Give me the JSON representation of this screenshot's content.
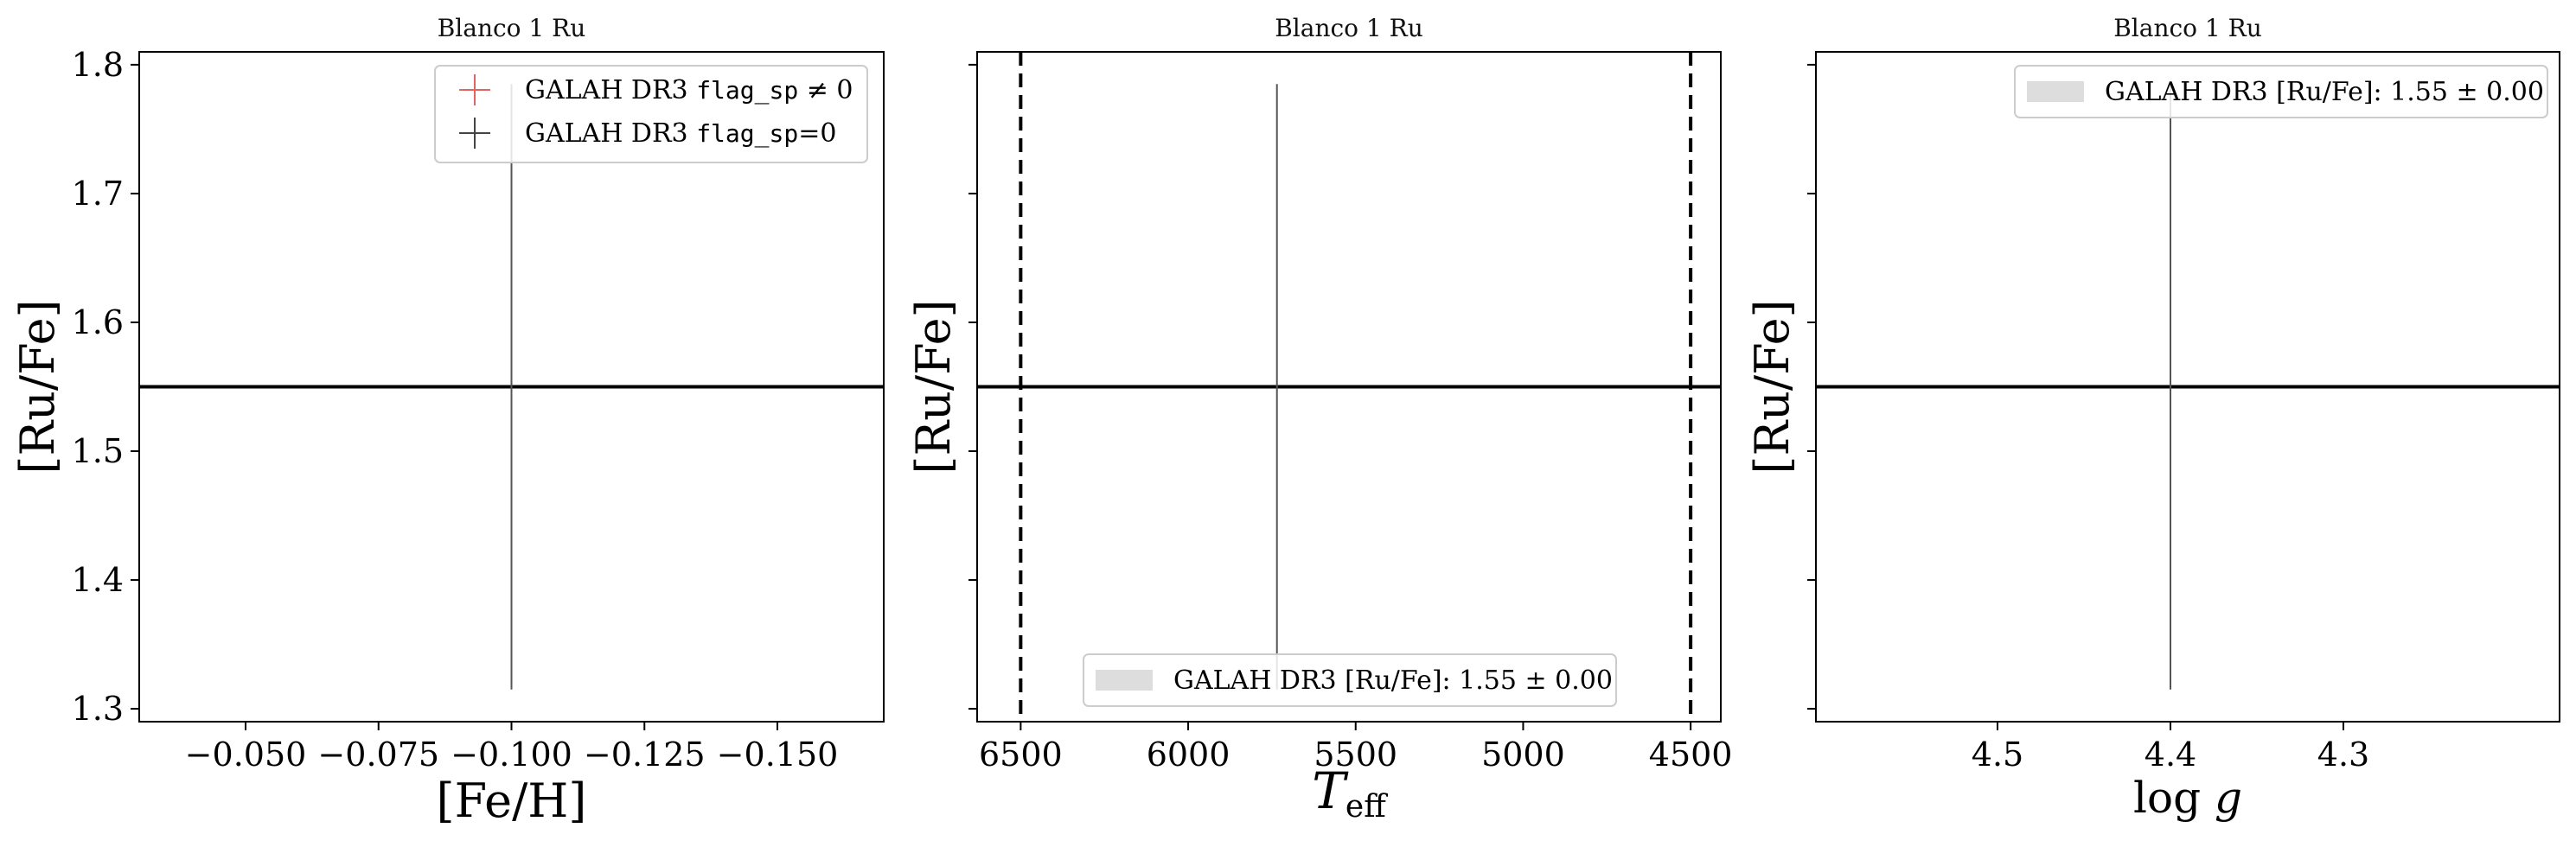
{
  "figure": {
    "panels": [
      {
        "title": "Blanco 1 Ru",
        "xlabel": "[Fe/H]",
        "ylabel": "[Ru/Fe]",
        "legend": {
          "placement": "top-right",
          "entries": [
            {
              "marker": "plus",
              "color": "#e06666",
              "prefix": "GALAH DR3 ",
              "code": "flag_sp",
              "suffix": " ≠ 0"
            },
            {
              "marker": "plus",
              "color": "#444444",
              "prefix": "GALAH DR3 ",
              "code": "flag_sp",
              "suffix": "=0"
            }
          ]
        }
      },
      {
        "title": "Blanco 1 Ru",
        "xlabel": "Teff",
        "ylabel": "[Ru/Fe]",
        "legend": {
          "placement": "lower-center",
          "entries": [
            {
              "marker": "band",
              "color": "#dddddd",
              "text": "GALAH DR3 [Ru/Fe]: 1.55 ± 0.00"
            }
          ]
        }
      },
      {
        "title": "Blanco 1 Ru",
        "xlabel": "log g",
        "ylabel": "[Ru/Fe]",
        "legend": {
          "placement": "top-right",
          "entries": [
            {
              "marker": "band",
              "color": "#dddddd",
              "text": "GALAH DR3 [Ru/Fe]: 1.55 ± 0.00"
            }
          ]
        }
      }
    ]
  },
  "chart_data": [
    {
      "type": "scatter",
      "title": "Blanco 1 Ru",
      "xlabel": "[Fe/H]",
      "ylabel": "[Ru/Fe]",
      "xlim": [
        -0.03,
        -0.17
      ],
      "ylim": [
        1.29,
        1.81
      ],
      "xticks": [
        -0.05,
        -0.075,
        -0.1,
        -0.125,
        -0.15
      ],
      "xticklabels": [
        "−0.050",
        "−0.075",
        "−0.100",
        "−0.125",
        "−0.150"
      ],
      "yticks": [
        1.3,
        1.4,
        1.5,
        1.6,
        1.7,
        1.8
      ],
      "yticklabels": [
        "1.3",
        "1.4",
        "1.5",
        "1.6",
        "1.7",
        "1.8"
      ],
      "show_ytick_labels": true,
      "points": [
        {
          "x": -0.1,
          "y": 1.55,
          "yerr_low": 0.235,
          "yerr_high": 0.235,
          "flag": "flag_sp=0"
        }
      ],
      "hlines": [
        1.55
      ],
      "vlines": [],
      "grid": false
    },
    {
      "type": "scatter",
      "title": "Blanco 1 Ru",
      "xlabel": "Teff",
      "ylabel": "[Ru/Fe]",
      "xlim": [
        6630,
        4410
      ],
      "ylim": [
        1.29,
        1.81
      ],
      "xticks": [
        6500,
        6000,
        5500,
        5000,
        4500
      ],
      "xticklabels": [
        "6500",
        "6000",
        "5500",
        "5000",
        "4500"
      ],
      "yticks": [
        1.3,
        1.4,
        1.5,
        1.6,
        1.7,
        1.8
      ],
      "yticklabels": [
        "1.3",
        "1.4",
        "1.5",
        "1.6",
        "1.7",
        "1.8"
      ],
      "show_ytick_labels": false,
      "points": [
        {
          "x": 5735,
          "y": 1.55,
          "yerr_low": 0.235,
          "yerr_high": 0.235,
          "flag": "flag_sp=0"
        }
      ],
      "hlines": [
        1.55
      ],
      "vlines": [
        6500,
        4500
      ],
      "grid": false
    },
    {
      "type": "scatter",
      "title": "Blanco 1 Ru",
      "xlabel": "log g",
      "ylabel": "[Ru/Fe]",
      "xlim": [
        4.605,
        4.175
      ],
      "ylim": [
        1.29,
        1.81
      ],
      "xticks": [
        4.5,
        4.4,
        4.3
      ],
      "xticklabels": [
        "4.5",
        "4.4",
        "4.3"
      ],
      "yticks": [
        1.3,
        1.4,
        1.5,
        1.6,
        1.7,
        1.8
      ],
      "yticklabels": [
        "1.3",
        "1.4",
        "1.5",
        "1.6",
        "1.7",
        "1.8"
      ],
      "show_ytick_labels": false,
      "points": [
        {
          "x": 4.4,
          "y": 1.55,
          "yerr_low": 0.235,
          "yerr_high": 0.235,
          "flag": "flag_sp=0"
        }
      ],
      "hlines": [
        1.55
      ],
      "vlines": [],
      "grid": false
    }
  ]
}
